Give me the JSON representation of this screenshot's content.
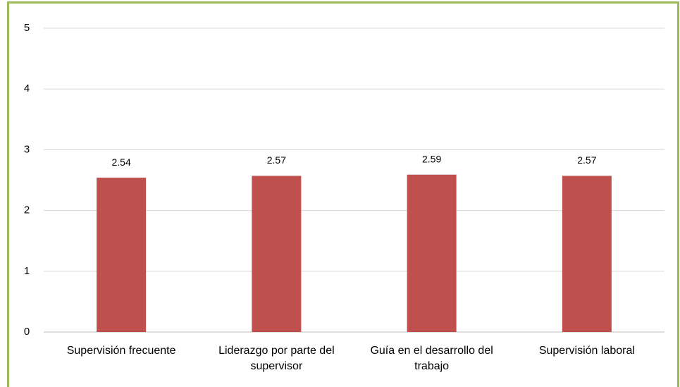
{
  "chart_data": {
    "type": "bar",
    "categories": [
      "Supervisión frecuente",
      "Liderazgo por parte del supervisor",
      "Guía en el desarrollo del trabajo",
      "Supervisión laboral"
    ],
    "values": [
      2.54,
      2.57,
      2.59,
      2.57
    ],
    "color": "#c0504d",
    "ylim": [
      0,
      5
    ],
    "yticks": [
      0,
      1,
      2,
      3,
      4,
      5
    ],
    "grid": true
  }
}
